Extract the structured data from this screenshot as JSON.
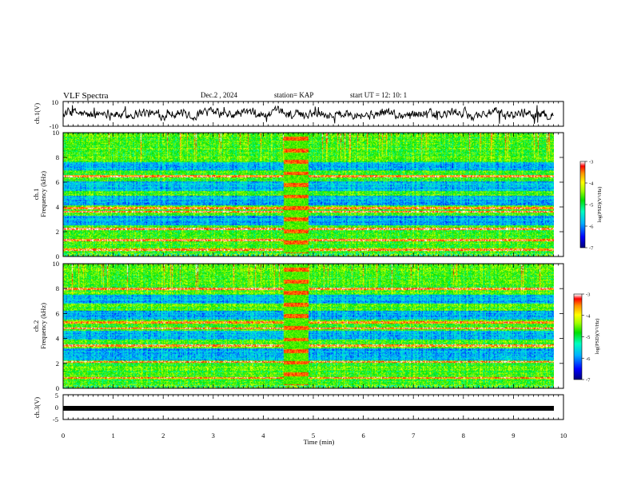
{
  "header": {
    "title": "VLF Spectra",
    "date": "Dec.2 , 2024",
    "station": "station= KAP",
    "start": "start  UT  =   12: 10: 1"
  },
  "chart_data": [
    {
      "type": "line",
      "ylabel": "ch.1(V)",
      "ylim": [
        -10,
        10
      ],
      "yticks": [
        "10",
        "-10"
      ],
      "xlim": [
        0,
        10
      ],
      "x_end": 9.8,
      "series": [
        {
          "description_values": "noisy waveform centred near 0 V, amplitude roughly ±5 V, occasional spikes toward ±8 V"
        }
      ],
      "color": "#000000"
    },
    {
      "type": "heatmap",
      "ylabel": "ch.1",
      "ylabel2": "Frequency (kHz)",
      "ylim": [
        0,
        10
      ],
      "yticks": [
        "0",
        "2",
        "4",
        "6",
        "8",
        "10"
      ],
      "xlim": [
        0,
        10
      ],
      "x_end": 9.8,
      "features": {
        "red_lines_khz": [
          0.5,
          1.3,
          2.2,
          3.6,
          3.9,
          6.5
        ],
        "disturbance_min": [
          4.4,
          4.9
        ],
        "blue_bands_khz": [
          [
            2.5,
            3.3
          ],
          [
            4.1,
            4.9
          ],
          [
            5.3,
            6.1
          ],
          [
            7.0,
            7.6
          ]
        ]
      },
      "colorbar": {
        "label": "log(PSD)(V²/Hz)",
        "range": [
          -7,
          -3
        ],
        "ticks": [
          "-3",
          "-4",
          "-5",
          "-6",
          "-7"
        ]
      }
    },
    {
      "type": "heatmap",
      "ylabel": "ch.2",
      "ylabel2": "Frequency (kHz)",
      "ylim": [
        0,
        10
      ],
      "yticks": [
        "0",
        "2",
        "4",
        "6",
        "8",
        "10"
      ],
      "xlim": [
        0,
        10
      ],
      "x_end": 9.8,
      "features": {
        "red_lines_khz": [
          0.8,
          2.1,
          3.4,
          4.8,
          5.3,
          8.0
        ],
        "disturbance_min": [
          4.4,
          4.9
        ],
        "blue_bands_khz": [
          [
            2.2,
            3.2
          ],
          [
            3.9,
            4.6
          ],
          [
            5.5,
            6.2
          ],
          [
            6.8,
            7.5
          ]
        ]
      },
      "colorbar": {
        "label": "log(PSD)(V²/Hz)",
        "range": [
          -7,
          -3
        ],
        "ticks": [
          "-3",
          "-4",
          "-5",
          "-6",
          "-7"
        ]
      }
    },
    {
      "type": "line",
      "ylabel": "ch.3(V)",
      "ylim": [
        -5,
        5
      ],
      "yticks": [
        "5",
        "0",
        "-5"
      ],
      "xlim": [
        0,
        10
      ],
      "x_end": 9.8,
      "series": [
        {
          "values_description": "constant near 0 V"
        }
      ],
      "xlabel": "Time (min)",
      "xticks": [
        "0",
        "1",
        "2",
        "3",
        "4",
        "5",
        "6",
        "7",
        "8",
        "9",
        "10"
      ]
    }
  ],
  "colors": {
    "colormap": [
      "#000080",
      "#0000ff",
      "#00b0ff",
      "#00ffc0",
      "#00e000",
      "#a0ff00",
      "#ffff00",
      "#ff9000",
      "#ff0000",
      "#ffffff"
    ]
  }
}
